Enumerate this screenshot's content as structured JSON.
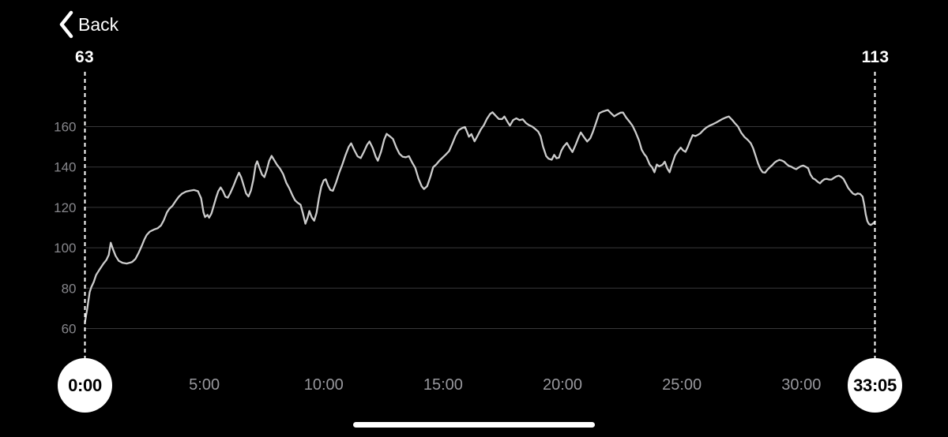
{
  "header": {
    "back_label": "Back"
  },
  "selection": {
    "start": {
      "time_label": "0:00",
      "value_label": "63"
    },
    "end": {
      "time_label": "33:05",
      "value_label": "113"
    }
  },
  "colors": {
    "background": "#000000",
    "line": "#cccccc",
    "grid": "#38383a",
    "y_label": "#87878c",
    "x_label": "#98989d",
    "dashed": "#ffffff",
    "marker_fill": "#ffffff",
    "marker_text": "#000000"
  },
  "chart_data": {
    "type": "line",
    "title": "",
    "duration_seconds": 1985,
    "x_range_seconds": [
      0,
      1985
    ],
    "y_axis": {
      "gridline_values": [
        60,
        80,
        100,
        120,
        140,
        160
      ]
    },
    "x_ticks": [
      {
        "label": "5:00",
        "seconds": 300
      },
      {
        "label": "10:00",
        "seconds": 600
      },
      {
        "label": "15:00",
        "seconds": 900
      },
      {
        "label": "20:00",
        "seconds": 1200
      },
      {
        "label": "25:00",
        "seconds": 1500
      },
      {
        "label": "30:00",
        "seconds": 1800
      }
    ],
    "start_marker": {
      "seconds": 0,
      "label": "0:00",
      "value": 63
    },
    "end_marker": {
      "seconds": 1985,
      "label": "33:05",
      "value": 113
    },
    "series": [
      {
        "name": "series1",
        "points": [
          [
            0,
            63
          ],
          [
            6,
            70
          ],
          [
            12,
            78
          ],
          [
            16,
            80.5
          ],
          [
            22,
            83
          ],
          [
            28,
            86.5
          ],
          [
            36,
            89
          ],
          [
            46,
            92
          ],
          [
            54,
            94
          ],
          [
            60,
            96.5
          ],
          [
            65,
            102.5
          ],
          [
            71,
            99
          ],
          [
            77,
            96
          ],
          [
            85,
            93.5
          ],
          [
            95,
            92.5
          ],
          [
            105,
            92.2
          ],
          [
            115,
            92.7
          ],
          [
            119,
            93
          ],
          [
            127,
            94.5
          ],
          [
            135,
            97.5
          ],
          [
            143,
            101
          ],
          [
            149,
            104
          ],
          [
            155,
            106.3
          ],
          [
            163,
            108
          ],
          [
            173,
            109
          ],
          [
            183,
            109.7
          ],
          [
            191,
            111
          ],
          [
            198,
            113.5
          ],
          [
            206,
            117.5
          ],
          [
            212,
            119.3
          ],
          [
            220,
            120.8
          ],
          [
            228,
            123.2
          ],
          [
            236,
            125.3
          ],
          [
            244,
            126.8
          ],
          [
            254,
            127.8
          ],
          [
            264,
            128.3
          ],
          [
            274,
            128.6
          ],
          [
            284,
            128
          ],
          [
            292,
            124.5
          ],
          [
            298,
            117.5
          ],
          [
            302,
            115.2
          ],
          [
            308,
            116.3
          ],
          [
            312,
            114.9
          ],
          [
            318,
            117
          ],
          [
            324,
            121
          ],
          [
            330,
            125
          ],
          [
            335,
            128
          ],
          [
            341,
            129.9
          ],
          [
            347,
            128
          ],
          [
            353,
            125.3
          ],
          [
            359,
            124.8
          ],
          [
            365,
            127
          ],
          [
            373,
            130.5
          ],
          [
            381,
            134.5
          ],
          [
            387,
            137.2
          ],
          [
            393,
            134.7
          ],
          [
            399,
            130.8
          ],
          [
            405,
            126.9
          ],
          [
            411,
            125.4
          ],
          [
            417,
            128.3
          ],
          [
            423,
            133.5
          ],
          [
            429,
            141
          ],
          [
            433,
            142.8
          ],
          [
            439,
            139.3
          ],
          [
            445,
            136.2
          ],
          [
            451,
            135
          ],
          [
            457,
            138.6
          ],
          [
            463,
            143
          ],
          [
            469,
            145.5
          ],
          [
            474,
            143.9
          ],
          [
            482,
            141.3
          ],
          [
            490,
            139.2
          ],
          [
            498,
            136.5
          ],
          [
            506,
            132.2
          ],
          [
            514,
            129.3
          ],
          [
            522,
            125.7
          ],
          [
            528,
            123.5
          ],
          [
            534,
            122.4
          ],
          [
            542,
            121.3
          ],
          [
            548,
            116.8
          ],
          [
            554,
            111.9
          ],
          [
            560,
            115.2
          ],
          [
            564,
            118.2
          ],
          [
            570,
            115
          ],
          [
            576,
            113.4
          ],
          [
            582,
            117.3
          ],
          [
            588,
            124.5
          ],
          [
            594,
            130.3
          ],
          [
            600,
            133.4
          ],
          [
            605,
            133.9
          ],
          [
            611,
            130.8
          ],
          [
            617,
            128.6
          ],
          [
            623,
            128.2
          ],
          [
            631,
            132.3
          ],
          [
            639,
            137.2
          ],
          [
            647,
            141.3
          ],
          [
            655,
            146
          ],
          [
            663,
            150
          ],
          [
            669,
            151.7
          ],
          [
            677,
            148.3
          ],
          [
            685,
            145.3
          ],
          [
            693,
            144.4
          ],
          [
            701,
            147.5
          ],
          [
            709,
            151
          ],
          [
            715,
            152.6
          ],
          [
            723,
            149.5
          ],
          [
            731,
            144.9
          ],
          [
            736,
            143.1
          ],
          [
            744,
            147.5
          ],
          [
            752,
            153.5
          ],
          [
            758,
            156.4
          ],
          [
            766,
            155.2
          ],
          [
            774,
            153.9
          ],
          [
            782,
            149.8
          ],
          [
            790,
            146.6
          ],
          [
            798,
            145.1
          ],
          [
            806,
            144.8
          ],
          [
            814,
            145.4
          ],
          [
            822,
            142.3
          ],
          [
            830,
            139.6
          ],
          [
            838,
            134.3
          ],
          [
            846,
            130.5
          ],
          [
            852,
            129.1
          ],
          [
            860,
            130.5
          ],
          [
            868,
            135.2
          ],
          [
            875,
            139.9
          ],
          [
            883,
            141.3
          ],
          [
            891,
            143.2
          ],
          [
            899,
            144.7
          ],
          [
            907,
            146.2
          ],
          [
            915,
            147.9
          ],
          [
            923,
            151.5
          ],
          [
            931,
            155.3
          ],
          [
            939,
            158.2
          ],
          [
            947,
            159.2
          ],
          [
            955,
            159.8
          ],
          [
            961,
            157
          ],
          [
            965,
            155
          ],
          [
            971,
            156.3
          ],
          [
            979,
            152.7
          ],
          [
            987,
            155.6
          ],
          [
            995,
            158.7
          ],
          [
            1002,
            160.6
          ],
          [
            1010,
            163.8
          ],
          [
            1018,
            166.2
          ],
          [
            1024,
            167.1
          ],
          [
            1032,
            165.4
          ],
          [
            1040,
            163.8
          ],
          [
            1048,
            163.7
          ],
          [
            1054,
            165
          ],
          [
            1062,
            162.3
          ],
          [
            1068,
            160.5
          ],
          [
            1076,
            163.3
          ],
          [
            1084,
            164.1
          ],
          [
            1092,
            163.2
          ],
          [
            1100,
            163.6
          ],
          [
            1108,
            161.8
          ],
          [
            1116,
            160.7
          ],
          [
            1124,
            160
          ],
          [
            1131,
            158.9
          ],
          [
            1139,
            157.5
          ],
          [
            1145,
            155.2
          ],
          [
            1151,
            150.2
          ],
          [
            1159,
            145.4
          ],
          [
            1165,
            144.1
          ],
          [
            1173,
            143.6
          ],
          [
            1179,
            146
          ],
          [
            1185,
            144.3
          ],
          [
            1191,
            144.6
          ],
          [
            1197,
            148
          ],
          [
            1203,
            150.1
          ],
          [
            1211,
            151.9
          ],
          [
            1217,
            149.8
          ],
          [
            1225,
            147.4
          ],
          [
            1233,
            151
          ],
          [
            1241,
            155
          ],
          [
            1246,
            157.1
          ],
          [
            1254,
            154.8
          ],
          [
            1262,
            152.6
          ],
          [
            1270,
            154.3
          ],
          [
            1276,
            157.2
          ],
          [
            1284,
            161.8
          ],
          [
            1292,
            166.6
          ],
          [
            1300,
            167.4
          ],
          [
            1308,
            167.9
          ],
          [
            1314,
            168.2
          ],
          [
            1322,
            166.6
          ],
          [
            1330,
            165.1
          ],
          [
            1338,
            166.1
          ],
          [
            1346,
            166.9
          ],
          [
            1352,
            167
          ],
          [
            1360,
            164.5
          ],
          [
            1368,
            162.5
          ],
          [
            1376,
            160.4
          ],
          [
            1384,
            157.1
          ],
          [
            1392,
            153.2
          ],
          [
            1399,
            148.5
          ],
          [
            1405,
            146.5
          ],
          [
            1411,
            145
          ],
          [
            1419,
            141.2
          ],
          [
            1425,
            139.9
          ],
          [
            1431,
            137.4
          ],
          [
            1437,
            141.2
          ],
          [
            1443,
            140.3
          ],
          [
            1451,
            141.1
          ],
          [
            1457,
            142.6
          ],
          [
            1463,
            139.4
          ],
          [
            1469,
            137.4
          ],
          [
            1475,
            141.2
          ],
          [
            1483,
            145.8
          ],
          [
            1489,
            147.6
          ],
          [
            1497,
            149.6
          ],
          [
            1503,
            148.2
          ],
          [
            1509,
            147.5
          ],
          [
            1515,
            150
          ],
          [
            1521,
            153
          ],
          [
            1527,
            155.8
          ],
          [
            1534,
            155.3
          ],
          [
            1540,
            155.9
          ],
          [
            1546,
            156.6
          ],
          [
            1554,
            158.3
          ],
          [
            1562,
            159.6
          ],
          [
            1570,
            160.5
          ],
          [
            1578,
            161.2
          ],
          [
            1586,
            162
          ],
          [
            1594,
            162.9
          ],
          [
            1602,
            163.8
          ],
          [
            1610,
            164.5
          ],
          [
            1618,
            165
          ],
          [
            1626,
            163.4
          ],
          [
            1633,
            161.7
          ],
          [
            1641,
            160
          ],
          [
            1649,
            157
          ],
          [
            1657,
            154.9
          ],
          [
            1665,
            153.5
          ],
          [
            1673,
            151.8
          ],
          [
            1679,
            149.3
          ],
          [
            1685,
            145.6
          ],
          [
            1691,
            141.9
          ],
          [
            1697,
            139.1
          ],
          [
            1703,
            137.4
          ],
          [
            1709,
            137.2
          ],
          [
            1715,
            138.7
          ],
          [
            1721,
            139.9
          ],
          [
            1727,
            140.9
          ],
          [
            1733,
            142.2
          ],
          [
            1739,
            143
          ],
          [
            1745,
            143.5
          ],
          [
            1751,
            143.2
          ],
          [
            1757,
            142.6
          ],
          [
            1763,
            141.4
          ],
          [
            1769,
            140.5
          ],
          [
            1775,
            140.1
          ],
          [
            1781,
            139.4
          ],
          [
            1787,
            138.9
          ],
          [
            1793,
            139.7
          ],
          [
            1799,
            140.4
          ],
          [
            1805,
            140.7
          ],
          [
            1811,
            140.1
          ],
          [
            1817,
            139.4
          ],
          [
            1823,
            136.2
          ],
          [
            1829,
            134.4
          ],
          [
            1835,
            133.8
          ],
          [
            1841,
            132.7
          ],
          [
            1847,
            131.9
          ],
          [
            1852,
            133
          ],
          [
            1858,
            133.9
          ],
          [
            1864,
            134.1
          ],
          [
            1870,
            133.8
          ],
          [
            1876,
            133.8
          ],
          [
            1882,
            134.6
          ],
          [
            1888,
            135.3
          ],
          [
            1894,
            135.7
          ],
          [
            1900,
            135.1
          ],
          [
            1906,
            134.1
          ],
          [
            1912,
            131.9
          ],
          [
            1918,
            129.6
          ],
          [
            1924,
            128.1
          ],
          [
            1930,
            126.8
          ],
          [
            1936,
            126.3
          ],
          [
            1942,
            126.9
          ],
          [
            1948,
            126.6
          ],
          [
            1954,
            125.3
          ],
          [
            1958,
            121.5
          ],
          [
            1962,
            116.5
          ],
          [
            1966,
            113.2
          ],
          [
            1970,
            111.8
          ],
          [
            1974,
            111.3
          ],
          [
            1978,
            111.7
          ],
          [
            1982,
            112.3
          ],
          [
            1985,
            113
          ]
        ]
      }
    ]
  }
}
